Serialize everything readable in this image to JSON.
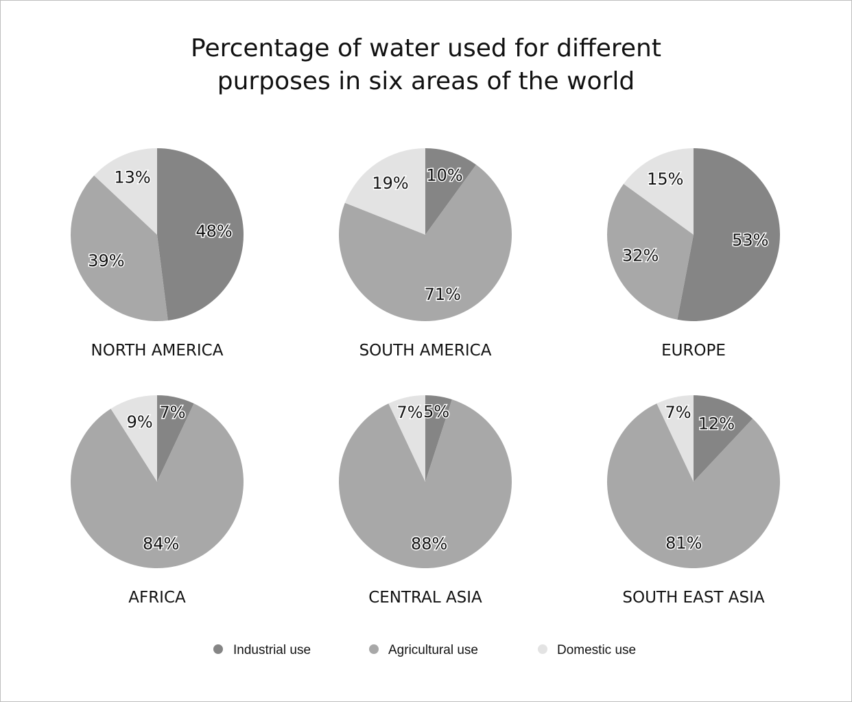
{
  "title": {
    "line1": "Percentage of water used for different",
    "line2": "purposes in six areas of the world"
  },
  "colors": {
    "industrial": "#858585",
    "agricultural": "#a8a8a8",
    "domestic": "#e3e3e3"
  },
  "chart_data": {
    "type": "pie",
    "title": "Percentage of water used for different purposes in six areas of the world",
    "categories": [
      "Industrial use",
      "Agricultural use",
      "Domestic use"
    ],
    "legend_position": "bottom",
    "pies": [
      {
        "name": "NORTH AMERICA",
        "values": [
          48,
          39,
          13
        ],
        "labels": [
          "48%",
          "39%",
          "13%"
        ]
      },
      {
        "name": "SOUTH AMERICA",
        "values": [
          10,
          71,
          19
        ],
        "labels": [
          "10%",
          "71%",
          "19%"
        ]
      },
      {
        "name": "EUROPE",
        "values": [
          53,
          32,
          15
        ],
        "labels": [
          "53%",
          "32%",
          "15%"
        ]
      },
      {
        "name": "AFRICA",
        "values": [
          7,
          84,
          9
        ],
        "labels": [
          "7%",
          "84%",
          "9%"
        ]
      },
      {
        "name": "CENTRAL ASIA",
        "values": [
          5,
          88,
          7
        ],
        "labels": [
          "5%",
          "88%",
          "7%"
        ]
      },
      {
        "name": "SOUTH EAST ASIA",
        "values": [
          12,
          81,
          7
        ],
        "labels": [
          "12%",
          "81%",
          "7%"
        ]
      }
    ]
  }
}
